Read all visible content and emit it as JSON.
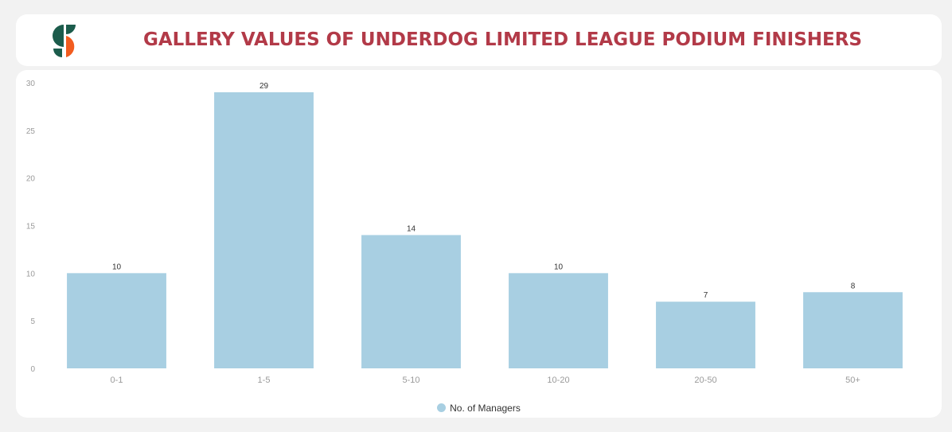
{
  "header": {
    "title": "GALLERY VALUES OF UNDERDOG LIMITED LEAGUE PODIUM FINISHERS"
  },
  "logo": {
    "name": "brand-logo-icon",
    "colors": [
      "#1c5c4c",
      "#f25c1f"
    ]
  },
  "chart_data": {
    "type": "bar",
    "title": "GALLERY VALUES OF UNDERDOG LIMITED LEAGUE PODIUM FINISHERS",
    "categories": [
      "0-1",
      "1-5",
      "5-10",
      "10-20",
      "20-50",
      "50+"
    ],
    "series": [
      {
        "name": "No. of Managers",
        "values": [
          10,
          29,
          14,
          10,
          7,
          8
        ],
        "color": "#a8cfe2"
      }
    ],
    "y_ticks": [
      0,
      5,
      10,
      15,
      20,
      25,
      30
    ],
    "ylim": [
      0,
      30
    ],
    "xlabel": "",
    "ylabel": "",
    "grid": false,
    "legend_position": "bottom-center"
  },
  "legend": {
    "label": "No. of Managers"
  }
}
